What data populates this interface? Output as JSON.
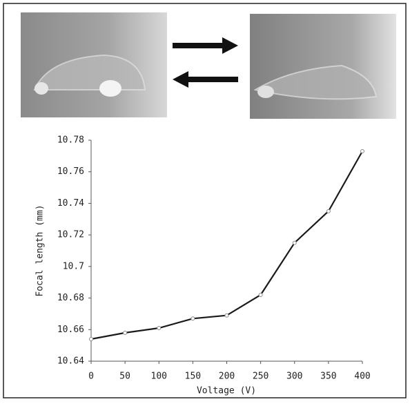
{
  "chart_data": {
    "type": "line",
    "x": [
      0,
      50,
      100,
      150,
      200,
      250,
      300,
      350,
      400
    ],
    "series": [
      {
        "color": "#1a1a1a",
        "values": [
          10.654,
          10.658,
          10.661,
          10.667,
          10.669,
          10.682,
          10.715,
          10.735,
          10.773
        ]
      }
    ],
    "xlabel": "Voltage (V)",
    "ylabel": "Focal length (mm)",
    "xlim": [
      0,
      400
    ],
    "xticks": [
      0,
      50,
      100,
      150,
      200,
      250,
      300,
      350,
      400
    ],
    "ylim": [
      10.64,
      10.78
    ],
    "yticks": [
      10.64,
      10.66,
      10.68,
      10.7,
      10.72,
      10.74,
      10.76,
      10.78
    ]
  }
}
